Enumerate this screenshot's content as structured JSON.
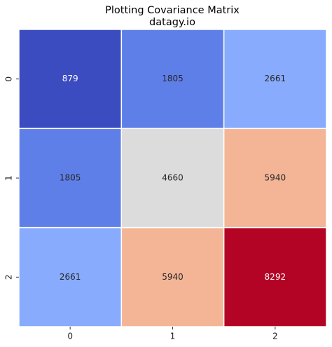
{
  "chart_data": {
    "type": "heatmap",
    "title": "Plotting Covariance Matrix",
    "subtitle": "datagy.io",
    "x_categories": [
      "0",
      "1",
      "2"
    ],
    "y_categories": [
      "0",
      "1",
      "2"
    ],
    "values": [
      [
        879,
        1805,
        2661
      ],
      [
        1805,
        4660,
        5940
      ],
      [
        2661,
        5940,
        8292
      ]
    ],
    "colors": [
      [
        "#3b4cc0",
        "#5f7fe8",
        "#88abfd"
      ],
      [
        "#5f7fe8",
        "#dddcdc",
        "#f4b597"
      ],
      [
        "#88abfd",
        "#f4b597",
        "#b40426"
      ]
    ]
  }
}
